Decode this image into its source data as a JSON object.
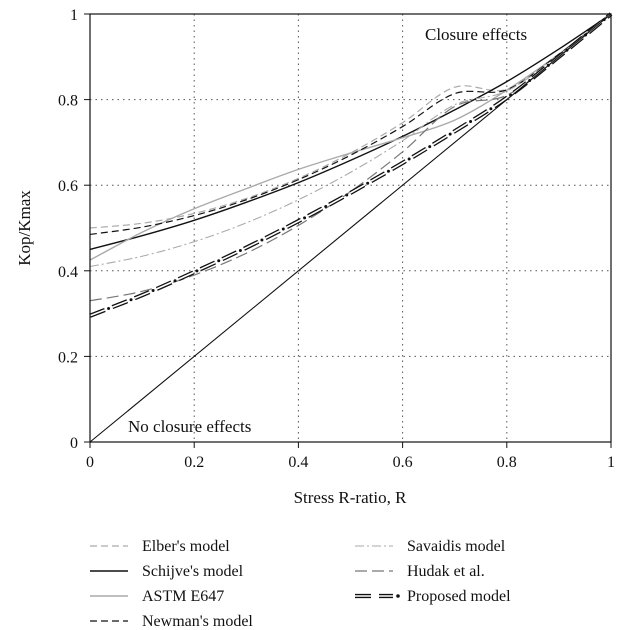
{
  "chart_data": {
    "type": "line",
    "xlabel": "Stress R-ratio, R",
    "ylabel": "Kop/Kmax",
    "xlim": [
      0,
      1
    ],
    "ylim": [
      0,
      1
    ],
    "grid": true,
    "xticks": [
      "0",
      "0.2",
      "0.4",
      "0.6",
      "0.8",
      "1"
    ],
    "yticks": [
      "0",
      "0.2",
      "0.4",
      "0.6",
      "0.8",
      "1"
    ],
    "annotations": [
      "Closure effects",
      "No closure effects"
    ],
    "legend_position": "bottom",
    "series": [
      {
        "name": "Elber's model",
        "style": "dashed",
        "color": "#aaaaaa",
        "x": [
          0,
          0.1,
          0.2,
          0.3,
          0.4,
          0.5,
          0.6,
          0.7,
          0.8,
          0.9,
          1.0
        ],
        "y": [
          0.5,
          0.511,
          0.534,
          0.569,
          0.616,
          0.675,
          0.746,
          0.829,
          0.824,
          0.906,
          1.0
        ]
      },
      {
        "name": "Schijve's model",
        "style": "solid",
        "color": "#111111",
        "x": [
          0,
          0.1,
          0.2,
          0.3,
          0.4,
          0.5,
          0.6,
          0.7,
          0.8,
          0.9,
          1.0
        ],
        "y": [
          0.45,
          0.482,
          0.518,
          0.56,
          0.606,
          0.658,
          0.714,
          0.776,
          0.842,
          0.918,
          1.0
        ]
      },
      {
        "name": "ASTM E647",
        "style": "solid",
        "color": "#aaaaaa",
        "x": [
          0,
          0.1,
          0.2,
          0.3,
          0.4,
          0.5,
          0.6,
          0.7,
          0.8,
          0.9,
          1.0
        ],
        "y": [
          0.425,
          0.49,
          0.545,
          0.592,
          0.637,
          0.675,
          0.711,
          0.752,
          0.822,
          0.906,
          1.0
        ]
      },
      {
        "name": "Newman's model",
        "style": "dashed",
        "color": "#111111",
        "x": [
          0,
          0.1,
          0.2,
          0.3,
          0.4,
          0.5,
          0.6,
          0.7,
          0.8,
          0.9,
          1.0
        ],
        "y": [
          0.485,
          0.502,
          0.529,
          0.566,
          0.613,
          0.67,
          0.737,
          0.814,
          0.823,
          0.906,
          1.0
        ]
      },
      {
        "name": "Savaidis model",
        "style": "dashdot",
        "color": "#aaaaaa",
        "x": [
          0,
          0.1,
          0.2,
          0.3,
          0.4,
          0.5,
          0.6,
          0.7,
          0.8,
          0.9,
          1.0
        ],
        "y": [
          0.41,
          0.434,
          0.468,
          0.512,
          0.566,
          0.63,
          0.704,
          0.788,
          0.82,
          0.904,
          1.0
        ]
      },
      {
        "name": "Hudak et al.",
        "style": "longdash",
        "color": "#777777",
        "x": [
          0,
          0.1,
          0.2,
          0.3,
          0.4,
          0.5,
          0.6,
          0.7,
          0.8,
          0.9,
          1.0
        ],
        "y": [
          0.33,
          0.352,
          0.39,
          0.441,
          0.506,
          0.585,
          0.678,
          0.784,
          0.81,
          0.9,
          1.0
        ]
      },
      {
        "name": "Proposed model",
        "style": "proposed",
        "color": "#111111",
        "x": [
          0,
          0.1,
          0.2,
          0.3,
          0.4,
          0.5,
          0.6,
          0.7,
          0.8,
          0.9,
          1.0
        ],
        "y": [
          0.295,
          0.343,
          0.397,
          0.454,
          0.516,
          0.582,
          0.652,
          0.726,
          0.804,
          0.9,
          1.0
        ]
      },
      {
        "name": "",
        "style": "solid-thin",
        "color": "#111111",
        "x": [
          0,
          1
        ],
        "y": [
          0,
          1
        ]
      }
    ]
  }
}
